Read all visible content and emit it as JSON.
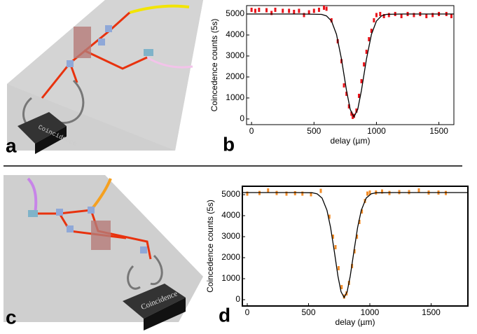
{
  "illustrations": [
    {
      "label": "a",
      "box_text": "Coincidence"
    },
    {
      "label": "c",
      "box_text": "Coincidence"
    }
  ],
  "chart_data": [
    {
      "type": "scatter",
      "label": "b",
      "xlabel": "delay (µm)",
      "ylabel": "Coincedence counts (5s)",
      "xlim": [
        -40,
        1620
      ],
      "ylim": [
        -270,
        5400
      ],
      "xticks": [
        0,
        500,
        1000,
        1500
      ],
      "yticks": [
        0,
        1000,
        2000,
        3000,
        4000,
        5000
      ],
      "series": [
        {
          "type": "scatter",
          "color": "#e8141b",
          "x": [
            0,
            30,
            60,
            120,
            160,
            190,
            250,
            300,
            340,
            380,
            420,
            460,
            500,
            540,
            580,
            600,
            640,
            690,
            720,
            740,
            760,
            780,
            800,
            810,
            820,
            840,
            860,
            880,
            900,
            920,
            940,
            960,
            980,
            1000,
            1030,
            1060,
            1100,
            1150,
            1200,
            1250,
            1300,
            1350,
            1400,
            1450,
            1500,
            1560,
            1600
          ],
          "values": [
            5200,
            5150,
            5200,
            5180,
            5050,
            5200,
            5150,
            5150,
            5100,
            5150,
            4950,
            5080,
            5150,
            5200,
            5300,
            5250,
            4700,
            3700,
            2750,
            1600,
            1200,
            600,
            250,
            100,
            150,
            400,
            1100,
            1800,
            2600,
            3200,
            3800,
            4200,
            4700,
            4950,
            5000,
            4900,
            4950,
            5000,
            4900,
            5000,
            4950,
            5000,
            4900,
            4950,
            5000,
            5000,
            4900
          ]
        },
        {
          "type": "line",
          "color": "#000000",
          "x": [
            -40,
            200,
            400,
            560,
            600,
            640,
            680,
            720,
            760,
            790,
            820,
            850,
            880,
            920,
            960,
            1000,
            1040,
            1080,
            1200,
            1400,
            1620
          ],
          "values": [
            5000,
            5000,
            5000,
            4982,
            4910,
            4662,
            4030,
            2854,
            1358,
            453,
            100,
            453,
            1358,
            2854,
            4030,
            4662,
            4910,
            4982,
            5000,
            5000,
            5000
          ]
        }
      ]
    },
    {
      "type": "scatter",
      "label": "d",
      "xlabel": "delay (µm)",
      "ylabel": "Coincedence counts (5s)",
      "xlim": [
        -40,
        1800
      ],
      "ylim": [
        -300,
        5400
      ],
      "xticks": [
        0,
        500,
        1000,
        1500
      ],
      "yticks": [
        0,
        1000,
        2000,
        3000,
        4000,
        5000
      ],
      "series": [
        {
          "type": "scatter",
          "color": "#f28c28",
          "x": [
            0,
            100,
            170,
            240,
            320,
            390,
            450,
            520,
            600,
            670,
            700,
            720,
            745,
            770,
            790,
            810,
            830,
            855,
            875,
            895,
            915,
            935,
            960,
            980,
            1000,
            1050,
            1100,
            1160,
            1240,
            1320,
            1400,
            1480,
            1560,
            1620
          ],
          "values": [
            5050,
            5080,
            5200,
            5080,
            5050,
            5070,
            5050,
            5020,
            5180,
            3950,
            3000,
            2500,
            1500,
            600,
            150,
            300,
            800,
            1600,
            2300,
            3000,
            3700,
            4200,
            4700,
            5050,
            5100,
            5100,
            5150,
            5080,
            5120,
            5120,
            5200,
            5100,
            5100,
            5080
          ]
        },
        {
          "type": "line",
          "color": "#000000",
          "x": [
            -40,
            200,
            400,
            530,
            570,
            610,
            650,
            680,
            710,
            740,
            765,
            790,
            815,
            840,
            870,
            900,
            930,
            970,
            1010,
            1050,
            1200,
            1400,
            1800
          ],
          "values": [
            5100,
            5100,
            5100,
            5089,
            5038,
            4835,
            4256,
            3431,
            2301,
            1117,
            378,
            102,
            378,
            1117,
            2301,
            3431,
            4256,
            4835,
            5038,
            5089,
            5100,
            5100,
            5100
          ]
        }
      ]
    }
  ]
}
